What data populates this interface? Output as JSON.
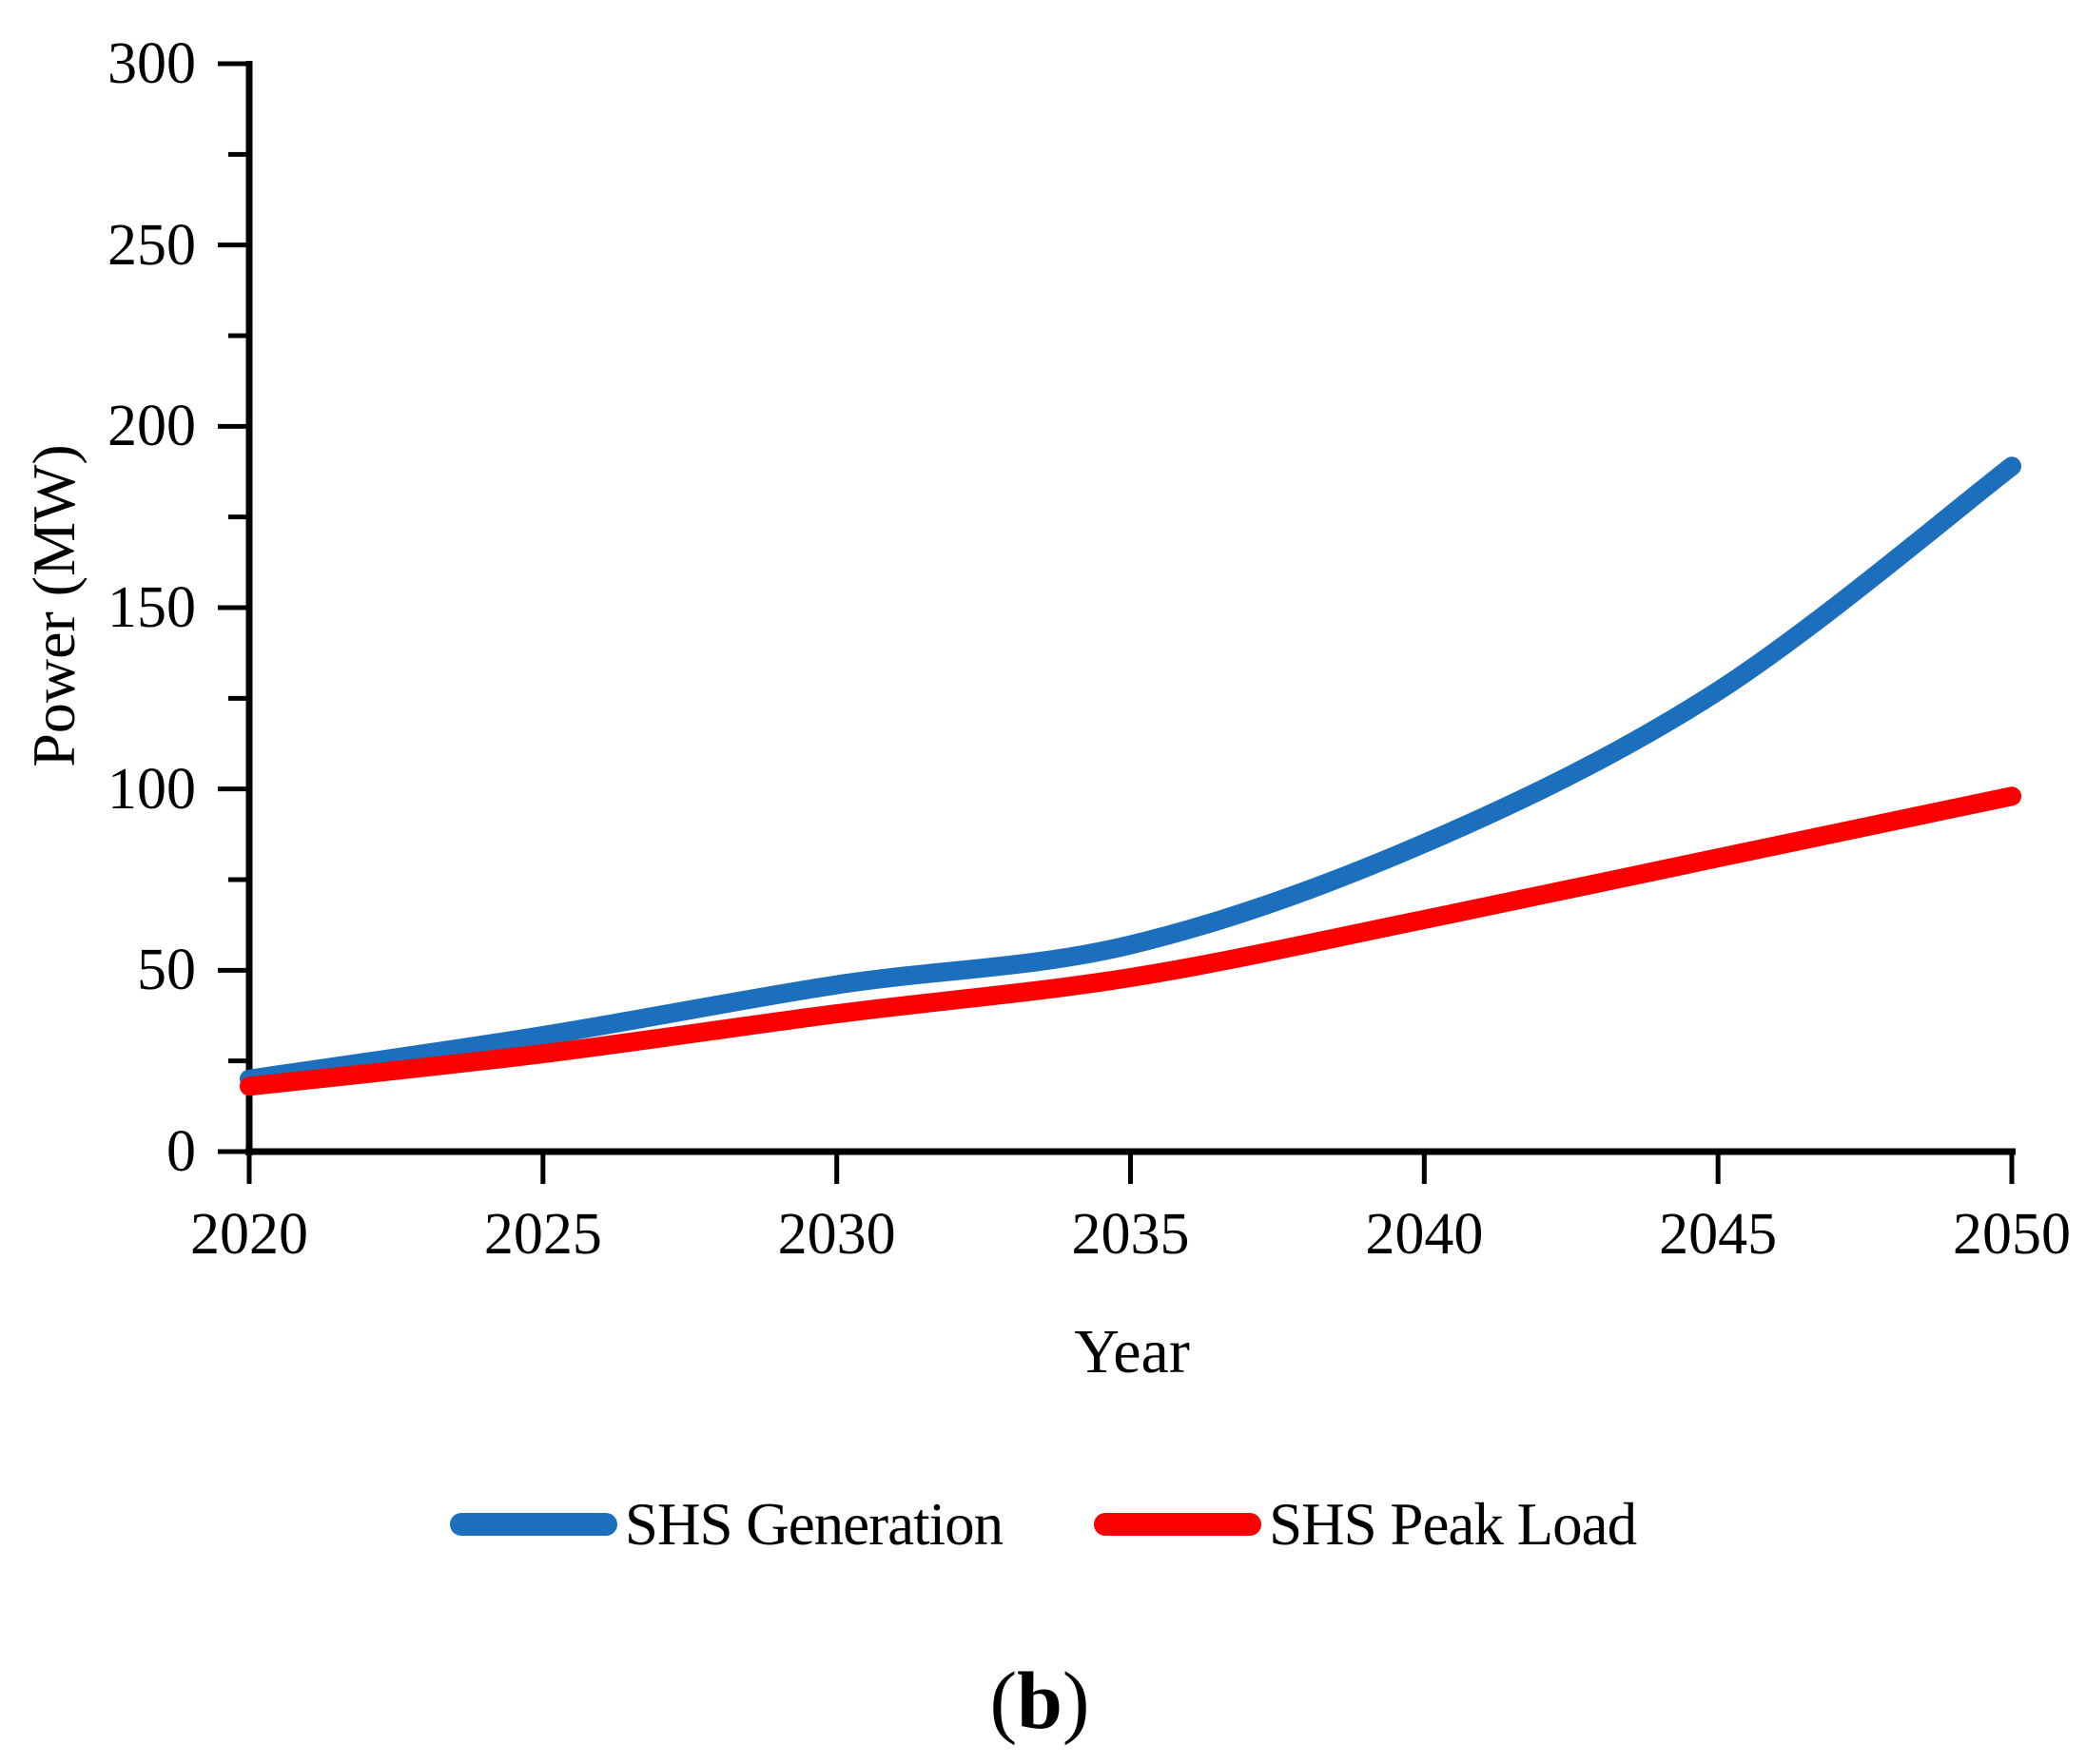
{
  "figure": {
    "caption": {
      "open": "(",
      "letter": "b",
      "close": ")"
    }
  },
  "chart_data": {
    "type": "line",
    "title": "",
    "xlabel": "Year",
    "ylabel": "Power (MW)",
    "xlim": [
      2020,
      2050
    ],
    "ylim": [
      0,
      300
    ],
    "xticks": [
      2020,
      2025,
      2030,
      2035,
      2040,
      2045,
      2050
    ],
    "yticks_major": [
      0,
      50,
      100,
      150,
      200,
      250,
      300
    ],
    "yticks_minor": [
      25,
      75,
      125,
      175,
      225,
      275
    ],
    "grid": false,
    "legend_position": "bottom",
    "axis_color": "#000000",
    "x": [
      2020,
      2025,
      2030,
      2035,
      2040,
      2045,
      2050
    ],
    "series": [
      {
        "name": "SHS Generation",
        "color": "#1B6FBC",
        "values": [
          20,
          32,
          46,
          57,
          85,
          127,
          189
        ]
      },
      {
        "name": "SHS Peak Load",
        "color": "#FB0000",
        "values": [
          18,
          27,
          38,
          48,
          64,
          81,
          98
        ]
      }
    ]
  }
}
